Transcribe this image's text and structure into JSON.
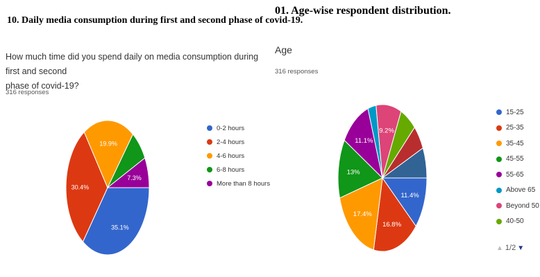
{
  "left": {
    "figure_title": "10. Daily media consumption during first and second phase of covid-19.",
    "question_line1": "How much time did you spend daily on media consumption during first and second",
    "question_line2": "phase of covid-19?",
    "responses": "316 responses"
  },
  "right": {
    "figure_title": "01. Age-wise respondent distribution.",
    "question": "Age",
    "responses": "316 responses",
    "pager": {
      "up_icon": "triangle-up-icon",
      "text": "1/2",
      "down_icon": "triangle-down-icon"
    }
  },
  "chart_data": [
    {
      "type": "pie",
      "title": "10. Daily media consumption during first and second phase of covid-19.",
      "legend_position": "right",
      "slices": [
        {
          "label": "0-2 hours",
          "value": 35.1,
          "display": "35.1%",
          "color": "#3366cc"
        },
        {
          "label": "2-4 hours",
          "value": 30.4,
          "display": "30.4%",
          "color": "#dc3912"
        },
        {
          "label": "4-6 hours",
          "value": 19.9,
          "display": "19.9%",
          "color": "#ff9900"
        },
        {
          "label": "6-8 hours",
          "value": 7.3,
          "display": "",
          "color": "#109618"
        },
        {
          "label": "More than 8 hours",
          "value": 7.3,
          "display": "7.3%",
          "color": "#990099"
        }
      ]
    },
    {
      "type": "pie",
      "title": "01. Age-wise respondent distribution.",
      "legend_position": "right",
      "slices": [
        {
          "label": "15-25",
          "value": 11.4,
          "display": "11.4%",
          "color": "#3366cc"
        },
        {
          "label": "25-35",
          "value": 16.8,
          "display": "16.8%",
          "color": "#dc3912"
        },
        {
          "label": "35-45",
          "value": 17.4,
          "display": "17.4%",
          "color": "#ff9900"
        },
        {
          "label": "45-55",
          "value": 13,
          "display": "13%",
          "color": "#109618"
        },
        {
          "label": "55-65",
          "value": 11.1,
          "display": "11.1%",
          "color": "#990099"
        },
        {
          "label": "Above 65",
          "value": 3,
          "display": "",
          "color": "#0099c6"
        },
        {
          "label": "Beyond 50",
          "value": 9.2,
          "display": "9.2%",
          "color": "#dd4477"
        },
        {
          "label": "40-50",
          "value": 6,
          "display": "",
          "color": "#66aa00"
        },
        {
          "label": "",
          "value": 5.4,
          "display": "",
          "color": "#b82e2e"
        },
        {
          "label": "",
          "value": 6.7,
          "display": "",
          "color": "#316395"
        }
      ]
    }
  ]
}
